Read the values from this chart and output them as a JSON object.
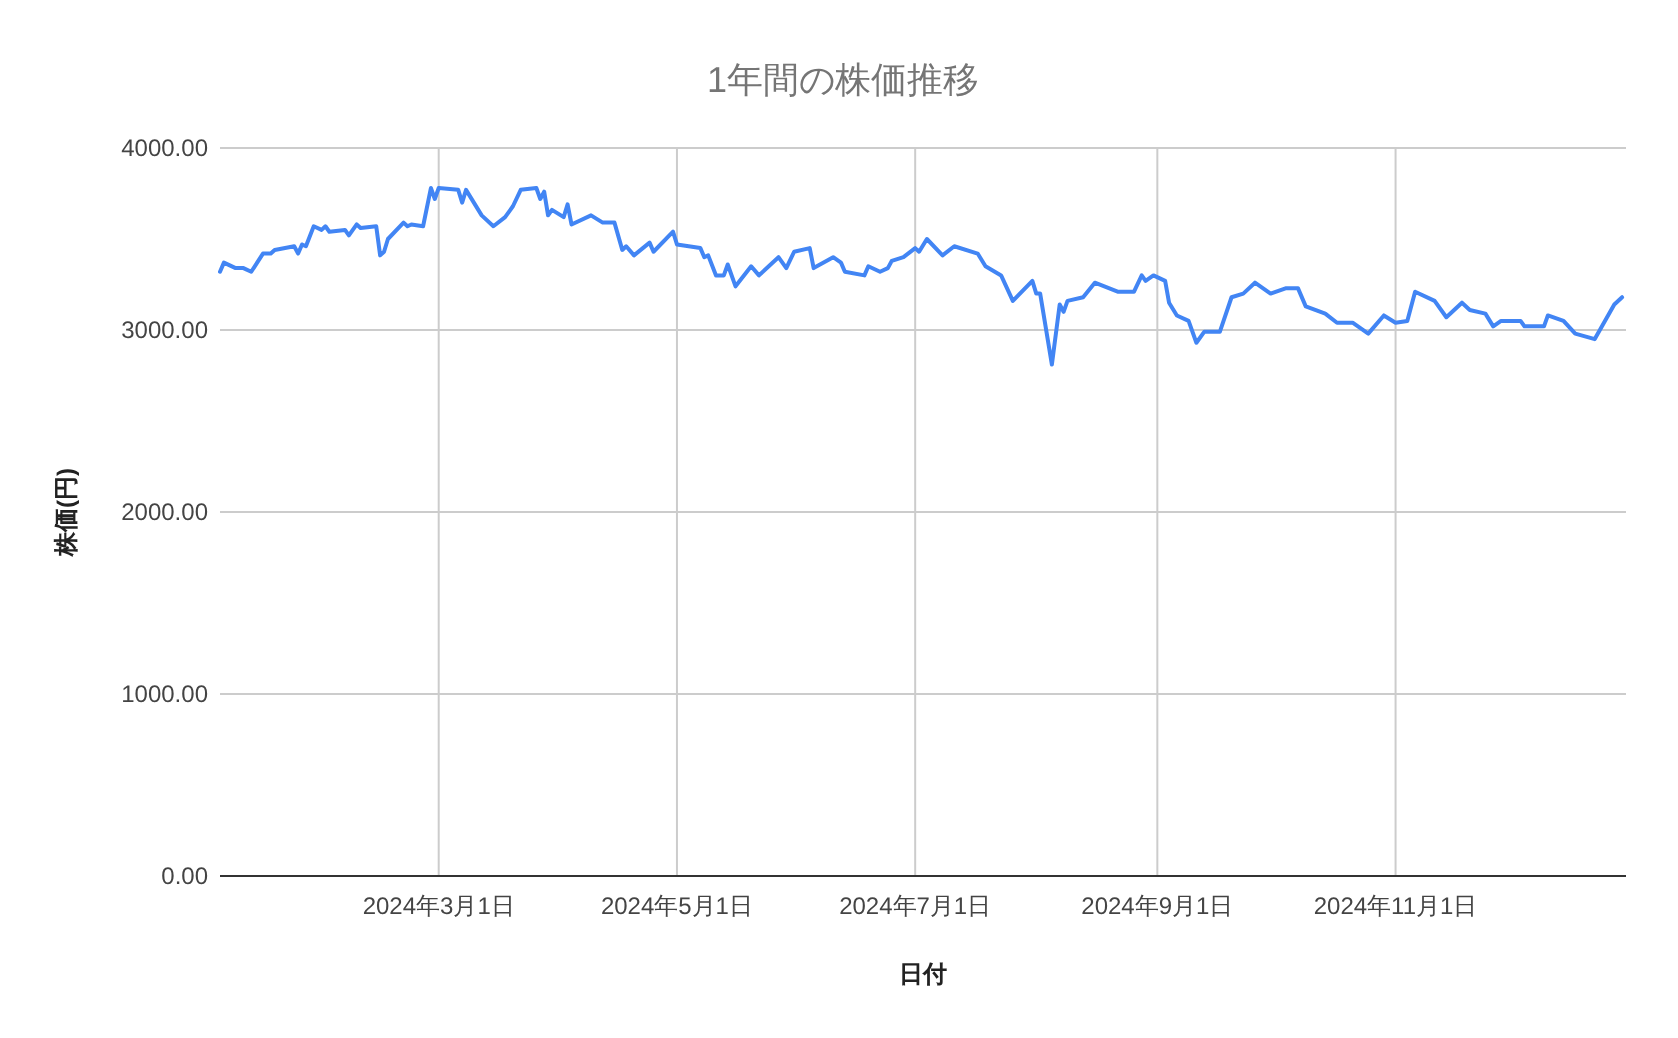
{
  "chart_data": {
    "type": "line",
    "title": "1年間の株価推移",
    "xlabel": "日付",
    "ylabel": "株価(円)",
    "x": [
      "2024-01-05",
      "2024-01-06",
      "2024-01-09",
      "2024-01-11",
      "2024-01-13",
      "2024-01-16",
      "2024-01-18",
      "2024-01-19",
      "2024-01-24",
      "2024-01-25",
      "2024-01-26",
      "2024-01-27",
      "2024-01-29",
      "2024-01-31",
      "2024-02-01",
      "2024-02-02",
      "2024-02-06",
      "2024-02-07",
      "2024-02-09",
      "2024-02-10",
      "2024-02-14",
      "2024-02-15",
      "2024-02-16",
      "2024-02-17",
      "2024-02-21",
      "2024-02-22",
      "2024-02-23",
      "2024-02-26",
      "2024-02-28",
      "2024-02-29",
      "2024-03-01",
      "2024-03-06",
      "2024-03-07",
      "2024-03-08",
      "2024-03-12",
      "2024-03-15",
      "2024-03-18",
      "2024-03-20",
      "2024-03-22",
      "2024-03-26",
      "2024-03-27",
      "2024-03-28",
      "2024-03-29",
      "2024-03-30",
      "2024-04-02",
      "2024-04-03",
      "2024-04-04",
      "2024-04-09",
      "2024-04-12",
      "2024-04-15",
      "2024-04-17",
      "2024-04-18",
      "2024-04-20",
      "2024-04-24",
      "2024-04-25",
      "2024-04-30",
      "2024-05-01",
      "2024-05-07",
      "2024-05-08",
      "2024-05-09",
      "2024-05-11",
      "2024-05-13",
      "2024-05-14",
      "2024-05-16",
      "2024-05-20",
      "2024-05-22",
      "2024-05-27",
      "2024-05-29",
      "2024-05-31",
      "2024-06-04",
      "2024-06-05",
      "2024-06-10",
      "2024-06-12",
      "2024-06-13",
      "2024-06-18",
      "2024-06-19",
      "2024-06-22",
      "2024-06-24",
      "2024-06-25",
      "2024-06-28",
      "2024-07-01",
      "2024-07-02",
      "2024-07-04",
      "2024-07-08",
      "2024-07-11",
      "2024-07-17",
      "2024-07-19",
      "2024-07-23",
      "2024-07-26",
      "2024-07-31",
      "2024-08-01",
      "2024-08-02",
      "2024-08-05",
      "2024-08-07",
      "2024-08-08",
      "2024-08-09",
      "2024-08-13",
      "2024-08-16",
      "2024-08-22",
      "2024-08-26",
      "2024-08-28",
      "2024-08-29",
      "2024-08-31",
      "2024-09-03",
      "2024-09-04",
      "2024-09-06",
      "2024-09-09",
      "2024-09-11",
      "2024-09-13",
      "2024-09-17",
      "2024-09-20",
      "2024-09-23",
      "2024-09-26",
      "2024-09-30",
      "2024-10-04",
      "2024-10-07",
      "2024-10-09",
      "2024-10-14",
      "2024-10-17",
      "2024-10-21",
      "2024-10-25",
      "2024-10-29",
      "2024-11-01",
      "2024-11-04",
      "2024-11-06",
      "2024-11-11",
      "2024-11-14",
      "2024-11-18",
      "2024-11-20",
      "2024-11-24",
      "2024-11-26",
      "2024-11-28",
      "2024-12-03",
      "2024-12-04",
      "2024-12-09",
      "2024-12-10",
      "2024-12-14",
      "2024-12-17",
      "2024-12-22",
      "2024-12-27",
      "2024-12-29"
    ],
    "series": [
      {
        "color": "#4285f4",
        "values": [
          3320,
          3370,
          3340,
          3340,
          3320,
          3420,
          3420,
          3440,
          3460,
          3420,
          3470,
          3460,
          3570,
          3550,
          3570,
          3540,
          3550,
          3520,
          3580,
          3560,
          3570,
          3410,
          3430,
          3500,
          3590,
          3570,
          3580,
          3570,
          3780,
          3720,
          3780,
          3770,
          3700,
          3770,
          3630,
          3570,
          3620,
          3680,
          3770,
          3780,
          3720,
          3760,
          3630,
          3660,
          3620,
          3690,
          3580,
          3630,
          3590,
          3590,
          3440,
          3460,
          3410,
          3480,
          3430,
          3540,
          3470,
          3450,
          3400,
          3410,
          3300,
          3300,
          3360,
          3240,
          3350,
          3300,
          3400,
          3340,
          3430,
          3450,
          3340,
          3400,
          3370,
          3320,
          3300,
          3350,
          3320,
          3340,
          3380,
          3400,
          3450,
          3430,
          3500,
          3410,
          3460,
          3420,
          3350,
          3300,
          3160,
          3270,
          3200,
          3200,
          2810,
          3140,
          3100,
          3160,
          3180,
          3260,
          3210,
          3210,
          3300,
          3270,
          3300,
          3270,
          3150,
          3080,
          3050,
          2930,
          2990,
          2990,
          3180,
          3200,
          3260,
          3200,
          3230,
          3230,
          3130,
          3090,
          3040,
          3040,
          2980,
          3080,
          3040,
          3050,
          3210,
          3160,
          3070,
          3150,
          3110,
          3090,
          3020,
          3050,
          3050,
          3020,
          3020,
          3080,
          3050,
          2980,
          2950,
          3140,
          3180
        ]
      }
    ],
    "xlim": [
      "2024-01-05",
      "2024-12-30"
    ],
    "xticks": [
      {
        "value": "2024-03-01",
        "label": "2024年3月1日"
      },
      {
        "value": "2024-05-01",
        "label": "2024年5月1日"
      },
      {
        "value": "2024-07-01",
        "label": "2024年7月1日"
      },
      {
        "value": "2024-09-01",
        "label": "2024年9月1日"
      },
      {
        "value": "2024-11-01",
        "label": "2024年11月1日"
      }
    ],
    "ylim": [
      0,
      4000
    ],
    "yticks": [
      {
        "value": 0,
        "label": "0.00"
      },
      {
        "value": 1000,
        "label": "1000.00"
      },
      {
        "value": 2000,
        "label": "2000.00"
      },
      {
        "value": 3000,
        "label": "3000.00"
      },
      {
        "value": 4000,
        "label": "4000.00"
      }
    ],
    "grid": true,
    "marker": "none",
    "line_style": "solid"
  }
}
